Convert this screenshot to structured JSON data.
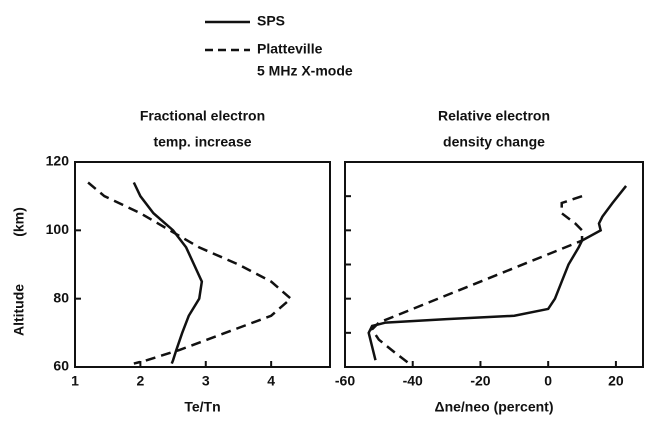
{
  "legend_note": "5 MHz X-mode",
  "y_label": [
    "Altitude",
    "(km)"
  ],
  "chart_data": [
    {
      "type": "line",
      "title": [
        "Fractional electron",
        "temp. increase"
      ],
      "x_label": "Te/Tn",
      "xlim": [
        1,
        4.9
      ],
      "xticks": [
        1,
        2,
        3,
        4
      ],
      "ylim": [
        60,
        120
      ],
      "yticks": [
        60,
        80,
        100,
        120
      ],
      "series": [
        {
          "name": "SPS",
          "dash": false,
          "color": "#111111",
          "altitude": [
            114,
            110,
            105,
            100,
            95,
            90,
            85,
            80,
            75,
            70,
            65,
            62,
            61
          ],
          "values": [
            1.9,
            2.0,
            2.2,
            2.5,
            2.7,
            2.82,
            2.94,
            2.9,
            2.74,
            2.64,
            2.55,
            2.5,
            2.48
          ]
        },
        {
          "name": "Platteville",
          "dash": true,
          "color": "#111111",
          "altitude": [
            114,
            110,
            105,
            100,
            95,
            90,
            85,
            80,
            75,
            70,
            65,
            62,
            61
          ],
          "values": [
            1.2,
            1.45,
            2.0,
            2.45,
            2.9,
            3.5,
            4.0,
            4.3,
            4.0,
            3.3,
            2.6,
            2.1,
            1.9
          ]
        }
      ]
    },
    {
      "type": "line",
      "title": [
        "Relative electron",
        "density change"
      ],
      "x_label": "Δne/neo  (percent)",
      "xlim": [
        -60,
        28
      ],
      "xticks": [
        -60,
        -40,
        -20,
        0,
        20
      ],
      "ylim": [
        60,
        120
      ],
      "yticks": [
        60,
        70,
        80,
        90,
        100,
        110,
        120
      ],
      "series": [
        {
          "dash": false,
          "color": "#111111",
          "altitude": [
            113,
            108,
            104,
            102,
            100,
            97,
            95,
            90,
            85,
            80,
            77,
            75,
            74,
            73,
            72,
            70,
            66,
            62
          ],
          "values": [
            23,
            19,
            16,
            15,
            15.5,
            10,
            9,
            6,
            4,
            2,
            0,
            -10,
            -30,
            -48,
            -52,
            -53,
            -52,
            -51
          ]
        },
        {
          "dash": true,
          "color": "#111111",
          "altitude": [
            110,
            108,
            105,
            102,
            100,
            97,
            73,
            71,
            68,
            64,
            61
          ],
          "values": [
            10,
            4,
            4,
            8,
            10,
            10,
            -50,
            -52,
            -50,
            -45,
            -41
          ]
        }
      ]
    }
  ]
}
